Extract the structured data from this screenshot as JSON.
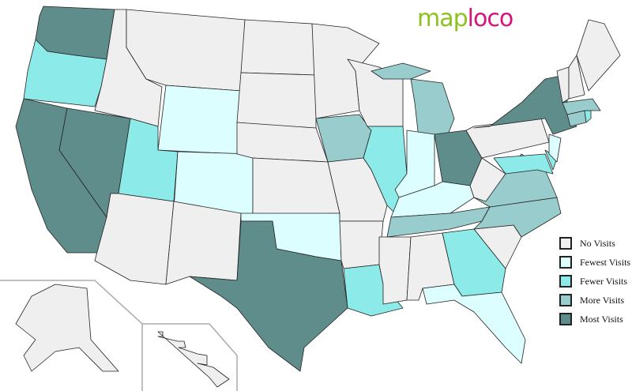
{
  "logo": {
    "part1": "map",
    "part2": "loco"
  },
  "colors": {
    "none": "#efefef",
    "fewest": "#ddfefe",
    "fewer": "#8cebe8",
    "more": "#99cccc",
    "most": "#5f8d8b",
    "border": "#222222"
  },
  "legend": [
    {
      "key": "none",
      "label": "No Visits"
    },
    {
      "key": "fewest",
      "label": "Fewest Visits"
    },
    {
      "key": "fewer",
      "label": "Fewer Visits"
    },
    {
      "key": "more",
      "label": "More Visits"
    },
    {
      "key": "most",
      "label": "Most Visits"
    }
  ],
  "states": {
    "WA": "most",
    "OR": "fewer",
    "CA": "most",
    "NV": "most",
    "ID": "none",
    "MT": "none",
    "WY": "fewest",
    "UT": "fewer",
    "CO": "fewest",
    "AZ": "none",
    "NM": "none",
    "ND": "none",
    "SD": "none",
    "NE": "none",
    "KS": "none",
    "OK": "fewest",
    "TX": "most",
    "MN": "none",
    "IA": "more",
    "MO": "none",
    "AR": "none",
    "LA": "fewer",
    "WI": "none",
    "IL": "fewer",
    "MI": "more",
    "IN": "fewest",
    "OH": "most",
    "KY": "fewest",
    "TN": "more",
    "MS": "none",
    "AL": "none",
    "GA": "fewer",
    "FL": "fewest",
    "SC": "none",
    "NC": "more",
    "VA": "more",
    "WV": "none",
    "PA": "none",
    "NY": "most",
    "MD": "fewer",
    "DE": "fewer",
    "NJ": "fewest",
    "CT": "more",
    "RI": "fewer",
    "MA": "more",
    "VT": "none",
    "NH": "none",
    "ME": "none",
    "AK": "none",
    "HI": "none"
  }
}
